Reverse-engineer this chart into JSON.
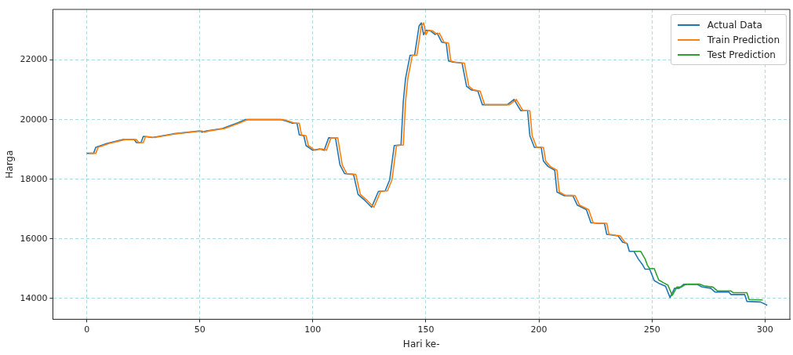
{
  "chart_data": {
    "type": "line",
    "xlabel": "Hari ke-",
    "ylabel": "Harga",
    "xlim": [
      -15,
      311
    ],
    "ylim": [
      13300,
      23700
    ],
    "xticks": [
      0,
      50,
      100,
      150,
      200,
      250,
      300
    ],
    "yticks": [
      14000,
      16000,
      18000,
      20000,
      22000
    ],
    "grid": true,
    "legend": "top right",
    "marker": "none",
    "line_style": "solid",
    "series": [
      {
        "name": "Actual Data",
        "color": "#1f77b4",
        "x": [
          0,
          3,
          4,
          9,
          16,
          21,
          22,
          24,
          25,
          29,
          38,
          50,
          51,
          53,
          60,
          67,
          70,
          86,
          88,
          91,
          93,
          94,
          96,
          97,
          100,
          103,
          105,
          107,
          110,
          112,
          114,
          118,
          120,
          123,
          126,
          129,
          132,
          134,
          136,
          139,
          140,
          141,
          143,
          145,
          147,
          148,
          149,
          150,
          152,
          154,
          155,
          157,
          159,
          160,
          162,
          166,
          168,
          170,
          173,
          175,
          186,
          189,
          191,
          192,
          195,
          196,
          198,
          201,
          202,
          204,
          207,
          208,
          211,
          215,
          217,
          221,
          223,
          226,
          229,
          230,
          235,
          237,
          239,
          240,
          242,
          244,
          246,
          247,
          249,
          251,
          253,
          256,
          258,
          260,
          262,
          264,
          270,
          272,
          276,
          278,
          284,
          285,
          291,
          292,
          298,
          301
        ],
        "values": [
          18870,
          18870,
          19070,
          19200,
          19330,
          19330,
          19230,
          19230,
          19440,
          19400,
          19520,
          19620,
          19580,
          19620,
          19700,
          19900,
          20000,
          20000,
          19960,
          19880,
          19880,
          19490,
          19460,
          19130,
          18970,
          19020,
          18970,
          19390,
          19390,
          18480,
          18190,
          18160,
          17490,
          17290,
          17060,
          17590,
          17610,
          17980,
          19130,
          19150,
          20600,
          21380,
          22160,
          22160,
          23150,
          23250,
          22850,
          23000,
          22980,
          22860,
          22900,
          22600,
          22570,
          21970,
          21930,
          21900,
          21120,
          21000,
          20960,
          20500,
          20500,
          20680,
          20420,
          20300,
          20300,
          19460,
          19070,
          19070,
          18610,
          18430,
          18300,
          17570,
          17450,
          17450,
          17130,
          16980,
          16540,
          16520,
          16520,
          16150,
          16100,
          15890,
          15840,
          15580,
          15580,
          15320,
          15110,
          14980,
          14980,
          14600,
          14510,
          14410,
          14030,
          14340,
          14340,
          14470,
          14470,
          14390,
          14340,
          14210,
          14210,
          14130,
          14130,
          13900,
          13880,
          13770
        ]
      },
      {
        "name": "Train Prediction",
        "color": "#ff7f0e",
        "x": [
          1,
          4,
          5,
          10,
          17,
          22,
          23,
          25,
          26,
          30,
          39,
          51,
          52,
          54,
          61,
          68,
          71,
          87,
          89,
          92,
          94,
          95,
          97,
          98,
          101,
          104,
          106,
          108,
          111,
          113,
          115,
          119,
          121,
          124,
          127,
          130,
          133,
          135,
          137,
          140,
          141,
          142,
          144,
          146,
          148,
          149,
          150,
          151,
          153,
          155,
          156,
          158,
          160,
          161,
          163,
          167,
          169,
          171,
          174,
          176,
          187,
          190,
          192,
          193,
          196,
          197,
          199,
          202,
          203,
          205,
          208,
          209,
          212,
          216,
          218,
          222,
          224,
          227,
          230,
          231,
          236,
          238,
          239
        ],
        "values": [
          18870,
          18870,
          19070,
          19200,
          19330,
          19330,
          19230,
          19230,
          19440,
          19400,
          19520,
          19620,
          19580,
          19620,
          19700,
          19900,
          20000,
          20000,
          19960,
          19880,
          19880,
          19490,
          19460,
          19130,
          18970,
          19020,
          18970,
          19390,
          19390,
          18480,
          18190,
          18160,
          17490,
          17290,
          17060,
          17590,
          17610,
          17980,
          19130,
          19150,
          20600,
          21380,
          22160,
          22160,
          23150,
          23250,
          22850,
          23000,
          22980,
          22860,
          22900,
          22600,
          22570,
          21970,
          21930,
          21900,
          21120,
          21000,
          20960,
          20500,
          20500,
          20680,
          20420,
          20300,
          20300,
          19460,
          19070,
          19070,
          18610,
          18430,
          18300,
          17570,
          17450,
          17450,
          17130,
          16980,
          16540,
          16520,
          16520,
          16150,
          16100,
          15890,
          15840
        ]
      },
      {
        "name": "Test Prediction",
        "color": "#2ca02c",
        "x": [
          242,
          245,
          247,
          248,
          249,
          251,
          253,
          255,
          257,
          259,
          261,
          263,
          265,
          271,
          273,
          277,
          279,
          285,
          286,
          292,
          293,
          299
        ],
        "values": [
          15580,
          15580,
          15320,
          15110,
          15000,
          15000,
          14620,
          14530,
          14450,
          14100,
          14380,
          14380,
          14480,
          14480,
          14420,
          14380,
          14250,
          14250,
          14190,
          14190,
          13960,
          13950
        ]
      }
    ]
  }
}
